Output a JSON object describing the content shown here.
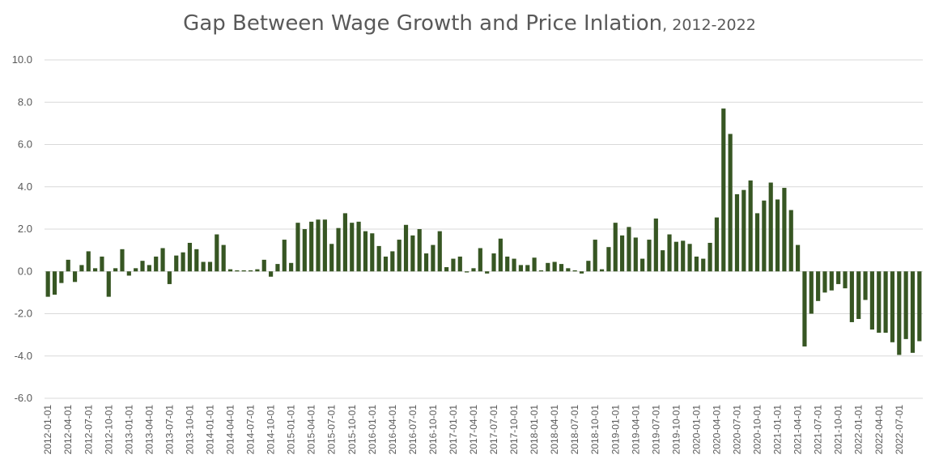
{
  "chart_data": {
    "type": "bar",
    "title": "Gap Between Wage Growth and Price Inlation",
    "subtitle": ", 2012-2022",
    "xlabel": "",
    "ylabel": "",
    "ylim": [
      -6,
      10
    ],
    "yticks": [
      "10.0",
      "8.0",
      "6.0",
      "4.0",
      "2.0",
      "0.0",
      "-2.0",
      "-4.0",
      "-6.0"
    ],
    "grid": true,
    "legend": "none",
    "bar_color": "#375623",
    "grid_color": "#d9d9d9",
    "tick_labels": [
      "2012-01-01",
      "2012-04-01",
      "2012-07-01",
      "2012-10-01",
      "2013-01-01",
      "2013-04-01",
      "2013-07-01",
      "2013-10-01",
      "2014-01-01",
      "2014-04-01",
      "2014-07-01",
      "2014-10-01",
      "2015-01-01",
      "2015-04-01",
      "2015-07-01",
      "2015-10-01",
      "2016-01-01",
      "2016-04-01",
      "2016-07-01",
      "2016-10-01",
      "2017-01-01",
      "2017-04-01",
      "2017-07-01",
      "2017-10-01",
      "2018-01-01",
      "2018-04-01",
      "2018-07-01",
      "2018-10-01",
      "2019-01-01",
      "2019-04-01",
      "2019-07-01",
      "2019-10-01",
      "2020-01-01",
      "2020-04-01",
      "2020-07-01",
      "2020-10-01",
      "2021-01-01",
      "2021-04-01",
      "2021-07-01",
      "2021-10-01",
      "2022-01-01",
      "2022-04-01",
      "2022-07-01"
    ],
    "start_month": "2012-01",
    "values": [
      -1.2,
      -1.1,
      -0.55,
      0.55,
      -0.5,
      0.3,
      0.95,
      0.15,
      0.7,
      -1.2,
      0.15,
      1.05,
      -0.2,
      0.15,
      0.5,
      0.3,
      0.7,
      1.1,
      -0.6,
      0.75,
      0.9,
      1.35,
      1.05,
      0.45,
      0.45,
      1.75,
      1.25,
      0.1,
      0.05,
      0.05,
      0.05,
      0.1,
      0.55,
      -0.25,
      0.35,
      1.5,
      0.4,
      2.3,
      2.0,
      2.35,
      2.45,
      2.45,
      1.3,
      2.05,
      2.75,
      2.3,
      2.35,
      1.9,
      1.8,
      1.2,
      0.7,
      0.95,
      1.5,
      2.2,
      1.7,
      2.0,
      0.85,
      1.25,
      1.9,
      0.2,
      0.6,
      0.7,
      -0.05,
      0.15,
      1.1,
      -0.1,
      0.85,
      1.55,
      0.7,
      0.6,
      0.3,
      0.3,
      0.65,
      0.05,
      0.4,
      0.45,
      0.35,
      0.15,
      0.05,
      -0.1,
      0.5,
      1.5,
      0.1,
      1.15,
      2.3,
      1.7,
      2.1,
      1.6,
      0.6,
      1.5,
      2.5,
      1.0,
      1.75,
      1.4,
      1.45,
      1.3,
      0.7,
      0.6,
      1.35,
      2.55,
      7.7,
      6.5,
      3.65,
      3.85,
      4.3,
      2.75,
      3.35,
      4.2,
      3.4,
      3.95,
      2.9,
      1.25,
      -3.55,
      -2.0,
      -1.4,
      -1.0,
      -0.9,
      -0.6,
      -0.8,
      -2.4,
      -2.25,
      -1.35,
      -2.75,
      -2.9,
      -2.9,
      -3.35,
      -3.95,
      -3.2,
      -3.85,
      -3.3
    ]
  }
}
